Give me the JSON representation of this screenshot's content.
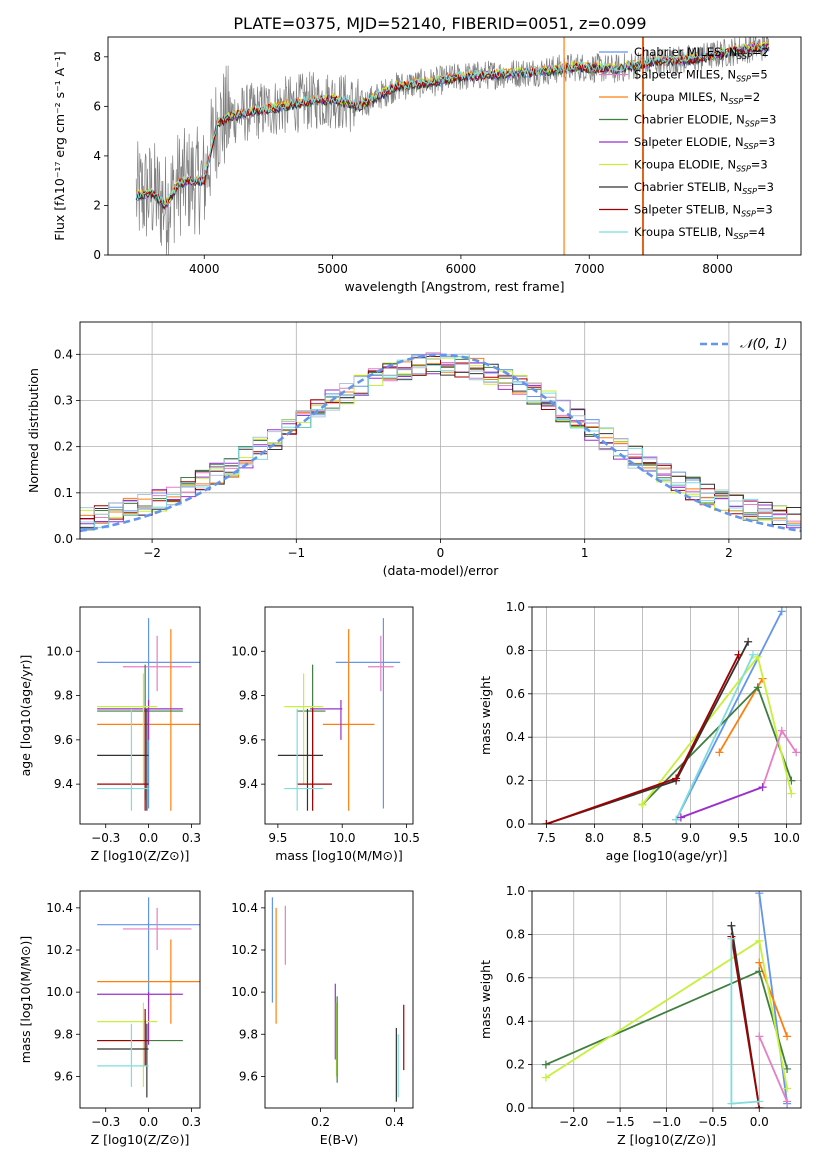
{
  "figure": {
    "title": "PLATE=0375, MJD=52140, FIBERID=0051, z=0.099"
  },
  "colors": {
    "blue": "#6495ed",
    "orange": "#ff7f0e",
    "green": "#3f7f3f",
    "purple": "#9932cc",
    "yellowgreen": "#c6f03a",
    "darkgray": "#333333",
    "red": "#a00000",
    "cyan": "#7fdddd",
    "pink": "#e57fc4",
    "gray": "#808080"
  },
  "legend_entries": [
    {
      "base": "Chabrier MILES, N",
      "sub": "SSP",
      "tail": "=2",
      "color": "#6495ed"
    },
    {
      "base": "Salpeter MILES, N",
      "sub": "SSP",
      "tail": "=5",
      "color": "#e57fc4"
    },
    {
      "base": "Kroupa MILES, N",
      "sub": "SSP",
      "tail": "=2",
      "color": "#ff7f0e"
    },
    {
      "base": "Chabrier ELODIE, N",
      "sub": "SSP",
      "tail": "=3",
      "color": "#3f7f3f"
    },
    {
      "base": "Salpeter ELODIE, N",
      "sub": "SSP",
      "tail": "=3",
      "color": "#9932cc"
    },
    {
      "base": "Kroupa ELODIE, N",
      "sub": "SSP",
      "tail": "=3",
      "color": "#c6f03a"
    },
    {
      "base": "Chabrier STELIB, N",
      "sub": "SSP",
      "tail": "=3",
      "color": "#333333"
    },
    {
      "base": "Salpeter STELIB, N",
      "sub": "SSP",
      "tail": "=3",
      "color": "#a00000"
    },
    {
      "base": "Kroupa STELIB, N",
      "sub": "SSP",
      "tail": "=4",
      "color": "#7fdddd"
    }
  ],
  "chart_data": [
    {
      "id": "spectrum",
      "type": "line",
      "xlabel": "wavelength [Angstrom, rest frame]",
      "ylabel": "Flux [fλ10⁻¹⁷ erg cm⁻² s⁻¹ A⁻¹]",
      "xlim": [
        3250,
        8650
      ],
      "ylim": [
        0,
        8.8
      ],
      "xticks": [
        4000,
        5000,
        6000,
        7000,
        8000
      ],
      "yticks": [
        0,
        2,
        4,
        6,
        8
      ],
      "model_continuum": {
        "x": [
          3470,
          3600,
          3700,
          3800,
          3900,
          4000,
          4100,
          4200,
          4300,
          4500,
          4800,
          5000,
          5200,
          5500,
          5800,
          6000,
          6300,
          6600,
          6900,
          7200,
          7500,
          7800,
          8000,
          8300
        ],
        "y": [
          2.4,
          2.5,
          2.0,
          2.9,
          3.0,
          3.0,
          5.3,
          5.6,
          5.7,
          5.9,
          6.2,
          6.3,
          6.0,
          6.8,
          7.0,
          7.2,
          7.3,
          7.4,
          7.6,
          7.5,
          7.8,
          7.9,
          8.1,
          8.4
        ]
      },
      "data_xrange": [
        3470,
        8400
      ],
      "series_names": "legend_entries"
    },
    {
      "id": "residuals",
      "type": "bar",
      "xlabel": "(data-model)/error",
      "ylabel": "Normed distribution",
      "xlim": [
        -2.5,
        2.5
      ],
      "ylim": [
        0,
        0.47
      ],
      "xticks": [
        -2,
        -1,
        0,
        1,
        2
      ],
      "yticks": [
        0,
        0.1,
        0.2,
        0.3,
        0.4
      ],
      "grid": true,
      "legend": "top-right",
      "reference_curve": {
        "name": "𝒩(0, 1)",
        "mu": 0,
        "sigma": 1
      }
    },
    {
      "id": "age-vs-Z",
      "type": "scatter",
      "xlabel": "Z [log10(Z/Z⊙)]",
      "ylabel": "age [log10(age/yr)]",
      "xlim": [
        -0.4,
        0.3
      ],
      "ylim": [
        9.22,
        10.2
      ],
      "xticks": [
        -0.25,
        0.0,
        0.25
      ],
      "yticks": [
        9.4,
        9.6,
        9.8,
        10.0
      ],
      "points": [
        {
          "x": 0.0,
          "y": 9.95,
          "xe": [
            -0.3,
            0.3
          ],
          "ye": [
            9.29,
            10.15
          ],
          "color": "#6495ed"
        },
        {
          "x": 0.05,
          "y": 9.93,
          "xe": [
            -0.15,
            0.25
          ],
          "ye": [
            9.82,
            10.07
          ],
          "color": "#e57fc4"
        },
        {
          "x": 0.13,
          "y": 9.67,
          "xe": [
            -0.3,
            0.3
          ],
          "ye": [
            9.28,
            10.1
          ],
          "color": "#ff7f0e"
        },
        {
          "x": -0.02,
          "y": 9.73,
          "xe": [
            -0.3,
            0.2
          ],
          "ye": [
            9.33,
            9.94
          ],
          "color": "#3f7f3f"
        },
        {
          "x": 0.0,
          "y": 9.74,
          "xe": [
            -0.3,
            0.2
          ],
          "ye": [
            9.6,
            9.78
          ],
          "color": "#9932cc"
        },
        {
          "x": -0.03,
          "y": 9.75,
          "xe": [
            -0.3,
            0.05
          ],
          "ye": [
            9.4,
            9.9
          ],
          "color": "#c6f03a"
        },
        {
          "x": -0.01,
          "y": 9.53,
          "xe": [
            -0.3,
            0.0
          ],
          "ye": [
            9.28,
            9.74
          ],
          "color": "#333333"
        },
        {
          "x": -0.02,
          "y": 9.4,
          "xe": [
            -0.3,
            0.0
          ],
          "ye": [
            9.28,
            9.74
          ],
          "color": "#a00000"
        },
        {
          "x": -0.1,
          "y": 9.38,
          "xe": [
            -0.3,
            0.0
          ],
          "ye": [
            9.28,
            9.74
          ],
          "color": "#7fdddd"
        }
      ]
    },
    {
      "id": "age-vs-mass",
      "type": "scatter",
      "xlabel": "mass [log10(M/M⊙)]",
      "ylabel": "",
      "xlim": [
        9.4,
        10.55
      ],
      "ylim": [
        9.22,
        10.2
      ],
      "xticks": [
        9.5,
        10.0,
        10.5
      ],
      "yticks": [
        9.4,
        9.6,
        9.8,
        10.0
      ],
      "points": [
        {
          "x": 10.32,
          "y": 9.95,
          "xe": [
            9.95,
            10.45
          ],
          "ye": [
            9.29,
            10.15
          ],
          "color": "#6495ed"
        },
        {
          "x": 10.3,
          "y": 9.93,
          "xe": [
            10.2,
            10.4
          ],
          "ye": [
            9.82,
            10.07
          ],
          "color": "#e57fc4"
        },
        {
          "x": 10.05,
          "y": 9.67,
          "xe": [
            9.85,
            10.25
          ],
          "ye": [
            9.28,
            10.1
          ],
          "color": "#ff7f0e"
        },
        {
          "x": 9.77,
          "y": 9.73,
          "xe": [
            9.65,
            9.87
          ],
          "ye": [
            9.33,
            9.94
          ],
          "color": "#3f7f3f"
        },
        {
          "x": 9.99,
          "y": 9.74,
          "xe": [
            9.75,
            10.0
          ],
          "ye": [
            9.6,
            9.78
          ],
          "color": "#9932cc"
        },
        {
          "x": 9.7,
          "y": 9.75,
          "xe": [
            9.55,
            9.85
          ],
          "ye": [
            9.4,
            9.9
          ],
          "color": "#c6f03a"
        },
        {
          "x": 9.73,
          "y": 9.53,
          "xe": [
            9.5,
            9.85
          ],
          "ye": [
            9.28,
            9.74
          ],
          "color": "#333333"
        },
        {
          "x": 9.77,
          "y": 9.4,
          "xe": [
            9.65,
            9.92
          ],
          "ye": [
            9.28,
            9.74
          ],
          "color": "#a00000"
        },
        {
          "x": 9.65,
          "y": 9.38,
          "xe": [
            9.55,
            9.85
          ],
          "ye": [
            9.28,
            9.74
          ],
          "color": "#7fdddd"
        }
      ]
    },
    {
      "id": "massweight-vs-age",
      "type": "line",
      "xlabel": "age [log10(age/yr)]",
      "ylabel": "mass weight",
      "xlim": [
        7.35,
        10.15
      ],
      "ylim": [
        0,
        1.0
      ],
      "xticks": [
        7.5,
        8.0,
        8.5,
        9.0,
        9.5,
        10.0
      ],
      "yticks": [
        0.0,
        0.2,
        0.4,
        0.6,
        0.8,
        1.0
      ],
      "grid": true,
      "series": [
        {
          "color": "#6495ed",
          "x": [
            8.85,
            9.95
          ],
          "y": [
            0.02,
            0.98
          ]
        },
        {
          "color": "#ff7f0e",
          "x": [
            9.3,
            9.75
          ],
          "y": [
            0.33,
            0.67
          ]
        },
        {
          "color": "#3f7f3f",
          "x": [
            8.5,
            9.7,
            10.05
          ],
          "y": [
            0.09,
            0.63,
            0.2
          ]
        },
        {
          "color": "#c6f03a",
          "x": [
            8.5,
            9.7,
            10.05
          ],
          "y": [
            0.09,
            0.77,
            0.14
          ]
        },
        {
          "color": "#333333",
          "x": [
            7.5,
            8.85,
            9.6
          ],
          "y": [
            0.0,
            0.2,
            0.84
          ]
        },
        {
          "color": "#a00000",
          "x": [
            7.5,
            8.85,
            9.5
          ],
          "y": [
            0.0,
            0.21,
            0.78
          ]
        },
        {
          "color": "#7fdddd",
          "x": [
            8.85,
            9.65
          ],
          "y": [
            0.02,
            0.78
          ]
        },
        {
          "color": "#e57fc4",
          "x": [
            8.9,
            9.75,
            9.95,
            10.1
          ],
          "y": [
            0.03,
            0.17,
            0.43,
            0.33
          ]
        },
        {
          "color": "#9932cc",
          "x": [
            8.9,
            9.75
          ],
          "y": [
            0.03,
            0.17
          ]
        }
      ]
    },
    {
      "id": "mass-vs-Z",
      "type": "scatter",
      "xlabel": "Z [log10(Z/Z⊙)]",
      "ylabel": "mass [log10(M/M⊙)]",
      "xlim": [
        -0.4,
        0.3
      ],
      "ylim": [
        9.45,
        10.48
      ],
      "xticks": [
        -0.25,
        0.0,
        0.25
      ],
      "yticks": [
        9.6,
        9.8,
        10.0,
        10.2,
        10.4
      ],
      "points": [
        {
          "x": 0.0,
          "y": 10.32,
          "xe": [
            -0.3,
            0.3
          ],
          "ye": [
            9.95,
            10.45
          ],
          "color": "#6495ed"
        },
        {
          "x": 0.05,
          "y": 10.3,
          "xe": [
            -0.15,
            0.25
          ],
          "ye": [
            10.2,
            10.4
          ],
          "color": "#e57fc4"
        },
        {
          "x": 0.13,
          "y": 10.05,
          "xe": [
            -0.3,
            0.3
          ],
          "ye": [
            9.85,
            10.25
          ],
          "color": "#ff7f0e"
        },
        {
          "x": -0.02,
          "y": 9.77,
          "xe": [
            -0.3,
            0.2
          ],
          "ye": [
            9.65,
            9.87
          ],
          "color": "#3f7f3f"
        },
        {
          "x": 0.0,
          "y": 9.99,
          "xe": [
            -0.3,
            0.2
          ],
          "ye": [
            9.75,
            10.0
          ],
          "color": "#9932cc"
        },
        {
          "x": -0.03,
          "y": 9.86,
          "xe": [
            -0.3,
            0.05
          ],
          "ye": [
            9.55,
            9.95
          ],
          "color": "#c6f03a"
        },
        {
          "x": -0.01,
          "y": 9.73,
          "xe": [
            -0.3,
            0.0
          ],
          "ye": [
            9.5,
            9.85
          ],
          "color": "#333333"
        },
        {
          "x": -0.02,
          "y": 9.77,
          "xe": [
            -0.3,
            0.0
          ],
          "ye": [
            9.65,
            9.92
          ],
          "color": "#a00000"
        },
        {
          "x": -0.1,
          "y": 9.65,
          "xe": [
            -0.3,
            0.0
          ],
          "ye": [
            9.55,
            9.85
          ],
          "color": "#7fdddd"
        }
      ]
    },
    {
      "id": "mass-vs-EBV",
      "type": "scatter",
      "xlabel": "E(B-V)",
      "ylabel": "",
      "xlim": [
        0.05,
        0.45
      ],
      "ylim": [
        9.45,
        10.48
      ],
      "xticks": [
        0.2,
        0.4
      ],
      "yticks": [
        9.6,
        9.8,
        10.0,
        10.2,
        10.4
      ],
      "points": [
        {
          "x": 0.07,
          "y": 10.32,
          "ye": [
            9.95,
            10.45
          ],
          "color": "#6495ed"
        },
        {
          "x": 0.105,
          "y": 10.3,
          "ye": [
            10.13,
            10.41
          ],
          "color": "#e57fc4"
        },
        {
          "x": 0.08,
          "y": 10.05,
          "ye": [
            9.85,
            10.4
          ],
          "color": "#ff7f0e"
        },
        {
          "x": 0.24,
          "y": 9.99,
          "ye": [
            9.68,
            10.04
          ],
          "color": "#9932cc"
        },
        {
          "x": 0.243,
          "y": 9.86,
          "ye": [
            9.6,
            9.95
          ],
          "color": "#c6f03a"
        },
        {
          "x": 0.245,
          "y": 9.77,
          "ye": [
            9.57,
            9.98
          ],
          "color": "#3f7f3f"
        },
        {
          "x": 0.405,
          "y": 9.73,
          "ye": [
            9.48,
            9.83
          ],
          "color": "#333333"
        },
        {
          "x": 0.41,
          "y": 9.65,
          "ye": [
            9.5,
            9.8
          ],
          "color": "#7fdddd"
        },
        {
          "x": 0.425,
          "y": 9.8,
          "ye": [
            9.63,
            9.94
          ],
          "color": "#a00000"
        }
      ]
    },
    {
      "id": "massweight-vs-Z",
      "type": "line",
      "xlabel": "Z [log10(Z/Z⊙)]",
      "ylabel": "mass weight",
      "xlim": [
        -2.45,
        0.45
      ],
      "ylim": [
        0,
        1.0
      ],
      "xticks": [
        -2.0,
        -1.5,
        -1.0,
        -0.5,
        0.0
      ],
      "yticks": [
        0.0,
        0.2,
        0.4,
        0.6,
        0.8,
        1.0
      ],
      "grid": true,
      "series": [
        {
          "color": "#6495ed",
          "x": [
            0.0,
            0.3
          ],
          "y": [
            0.99,
            0.02
          ]
        },
        {
          "color": "#ff7f0e",
          "x": [
            0.0,
            0.3
          ],
          "y": [
            0.67,
            0.33
          ]
        },
        {
          "color": "#3f7f3f",
          "x": [
            -2.3,
            0.0,
            0.3
          ],
          "y": [
            0.2,
            0.63,
            0.18
          ]
        },
        {
          "color": "#c6f03a",
          "x": [
            -2.3,
            0.0,
            0.3
          ],
          "y": [
            0.14,
            0.77,
            0.09
          ]
        },
        {
          "color": "#333333",
          "x": [
            -0.3,
            0.0
          ],
          "y": [
            0.84,
            0.0
          ]
        },
        {
          "color": "#a00000",
          "x": [
            -0.3,
            0.0
          ],
          "y": [
            0.79,
            0.0
          ]
        },
        {
          "color": "#7fdddd",
          "x": [
            -0.3,
            -0.3,
            0.0
          ],
          "y": [
            0.78,
            0.02,
            0.03
          ]
        },
        {
          "color": "#e57fc4",
          "x": [
            0.0,
            0.3
          ],
          "y": [
            0.33,
            0.03
          ]
        }
      ]
    }
  ]
}
